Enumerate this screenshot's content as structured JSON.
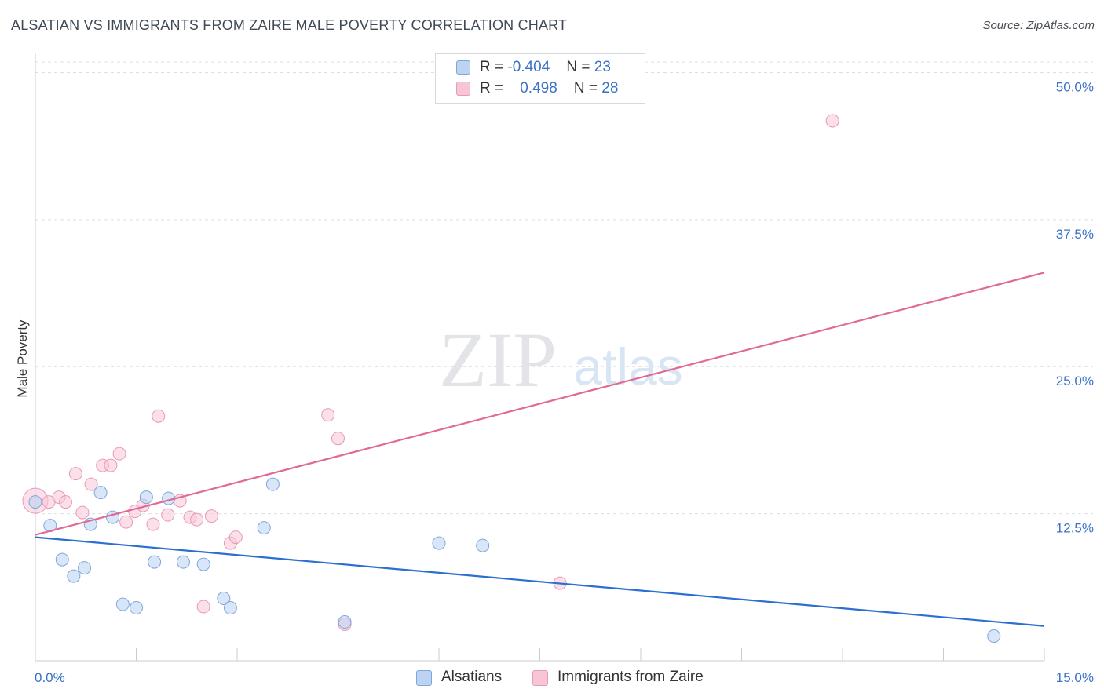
{
  "header": {
    "title": "ALSATIAN VS IMMIGRANTS FROM ZAIRE MALE POVERTY CORRELATION CHART",
    "source": "Source: ZipAtlas.com"
  },
  "watermark": {
    "zip": "ZIP",
    "atlas": "atlas"
  },
  "legend": {
    "rows": [
      {
        "r_label": "R =",
        "r_value": "-0.404",
        "n_label": "N =",
        "n_value": "23"
      },
      {
        "r_label": "R =",
        "r_value": "0.498",
        "n_label": "N =",
        "n_value": "28"
      }
    ]
  },
  "chart_data": {
    "type": "scatter",
    "title": "ALSATIAN VS IMMIGRANTS FROM ZAIRE MALE POVERTY CORRELATION CHART",
    "ylabel": "Male Poverty",
    "xlabel": "",
    "xlim": [
      0,
      15
    ],
    "ylim": [
      0,
      51.5
    ],
    "x_tick_labels": [
      "0.0%",
      "15.0%"
    ],
    "y_ticks": [
      12.5,
      25.0,
      37.5,
      50.0
    ],
    "y_tick_labels": [
      "12.5%",
      "25.0%",
      "37.5%",
      "50.0%"
    ],
    "grid": true,
    "legend_position": "top-center",
    "colors": {
      "alsatians": "#5b8fd9",
      "zaire": "#e87fa2",
      "alsatians_line": "#2b6fd1",
      "zaire_line": "#e06a94",
      "tick_label": "#3a72c9"
    },
    "series": [
      {
        "name": "Alsatians",
        "x": [
          0.0,
          0.22,
          0.4,
          0.57,
          0.73,
          0.82,
          0.97,
          1.15,
          1.3,
          1.5,
          1.65,
          1.77,
          1.98,
          2.2,
          2.5,
          2.8,
          2.9,
          3.4,
          3.53,
          4.6,
          6.0,
          6.65,
          14.25
        ],
        "y": [
          13.5,
          11.5,
          8.6,
          7.2,
          7.9,
          11.6,
          14.3,
          12.2,
          4.8,
          4.5,
          13.9,
          8.4,
          13.8,
          8.4,
          8.2,
          5.3,
          4.5,
          11.3,
          15.0,
          3.3,
          10.0,
          9.8,
          2.1
        ]
      },
      {
        "name": "Immigrants from Zaire",
        "x": [
          0.0,
          0.2,
          0.35,
          0.45,
          0.6,
          0.7,
          0.83,
          1.0,
          1.12,
          1.25,
          1.35,
          1.48,
          1.6,
          1.75,
          1.83,
          1.97,
          2.15,
          2.3,
          2.4,
          2.5,
          2.62,
          2.9,
          2.98,
          4.35,
          4.5,
          4.6,
          7.8,
          11.85
        ],
        "y": [
          13.6,
          13.5,
          13.9,
          13.5,
          15.9,
          12.6,
          15.0,
          16.6,
          16.6,
          17.6,
          11.8,
          12.7,
          13.2,
          11.6,
          20.8,
          12.4,
          13.6,
          12.2,
          12.0,
          4.6,
          12.3,
          10.0,
          10.5,
          20.9,
          18.9,
          3.1,
          6.6,
          45.9
        ]
      }
    ],
    "trend_lines": [
      {
        "series": "Alsatians",
        "x": [
          0,
          15
        ],
        "y": [
          10.5,
          2.95
        ]
      },
      {
        "series": "Immigrants from Zaire",
        "x": [
          0,
          15
        ],
        "y": [
          10.7,
          33.0
        ]
      }
    ]
  },
  "bottom_legend": [
    {
      "label": "Alsatians"
    },
    {
      "label": "Immigrants from Zaire"
    }
  ]
}
